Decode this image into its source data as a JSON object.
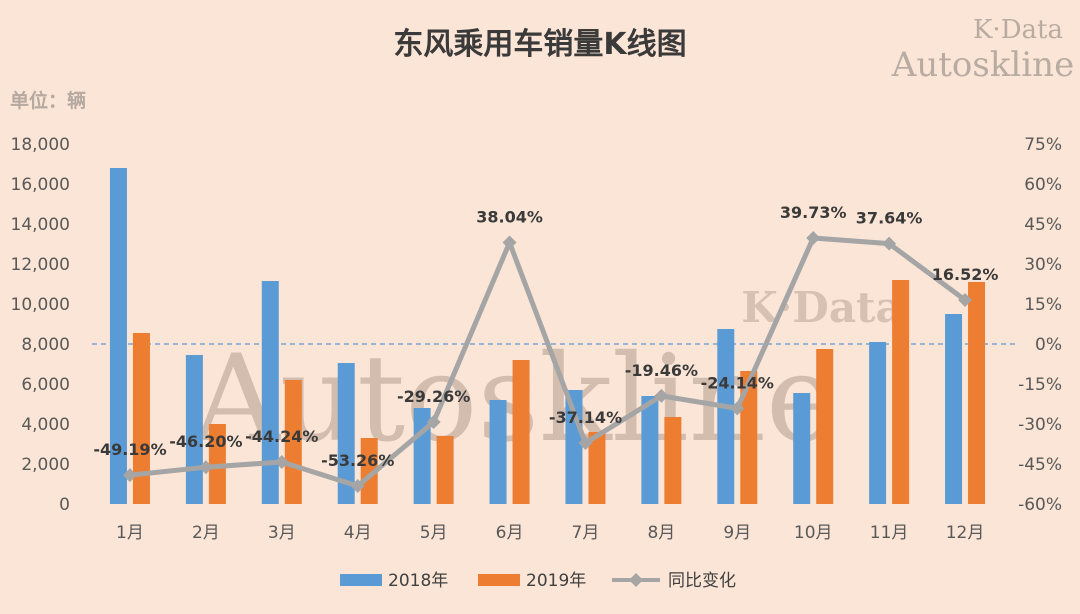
{
  "title": "东风乘用车销量K线图",
  "unit_label": "单位：辆",
  "watermark": {
    "corner_line1": "K·Data",
    "corner_line2": "Autoskline",
    "center_big": "Autoskline",
    "center_small": "K·Data"
  },
  "colors": {
    "background": "#fbe5d6",
    "series_2018": "#5b9bd5",
    "series_2019": "#ed7d31",
    "yoy_line": "#a5a5a5",
    "zero_line": "#5b9bd5"
  },
  "chart_data": {
    "type": "bar",
    "title": "东风乘用车销量K线图",
    "categories": [
      "1月",
      "2月",
      "3月",
      "4月",
      "5月",
      "6月",
      "7月",
      "8月",
      "9月",
      "10月",
      "11月",
      "12月"
    ],
    "series": [
      {
        "name": "2018年",
        "type": "bar",
        "axis": "left",
        "values": [
          16800,
          7450,
          11150,
          7050,
          4800,
          5200,
          5700,
          5400,
          8750,
          5550,
          8100,
          9500
        ]
      },
      {
        "name": "2019年",
        "type": "bar",
        "axis": "left",
        "values": [
          8550,
          4000,
          6200,
          3300,
          3400,
          7200,
          3600,
          4350,
          6650,
          7750,
          11200,
          11100
        ]
      },
      {
        "name": "同比变化",
        "type": "line",
        "axis": "right",
        "values": [
          -49.19,
          -46.2,
          -44.24,
          -53.26,
          -29.26,
          38.04,
          -37.14,
          -19.46,
          -24.14,
          39.73,
          37.64,
          16.52
        ],
        "labels": [
          "-49.19%",
          "-46.20%",
          "-44.24%",
          "-53.26%",
          "-29.26%",
          "38.04%",
          "-37.14%",
          "-19.46%",
          "-24.14%",
          "39.73%",
          "37.64%",
          "16.52%"
        ]
      }
    ],
    "ylim_left": [
      0,
      18000
    ],
    "yticks_left": [
      "18,000",
      "16,000",
      "14,000",
      "12,000",
      "10,000",
      "8,000",
      "6,000",
      "4,000",
      "2,000",
      "0"
    ],
    "ylim_right": [
      -60,
      75
    ],
    "yticks_right": [
      "75%",
      "60%",
      "45%",
      "30%",
      "15%",
      "0%",
      "-15%",
      "-30%",
      "-45%",
      "-60%"
    ],
    "grid": false,
    "legend_position": "bottom"
  }
}
